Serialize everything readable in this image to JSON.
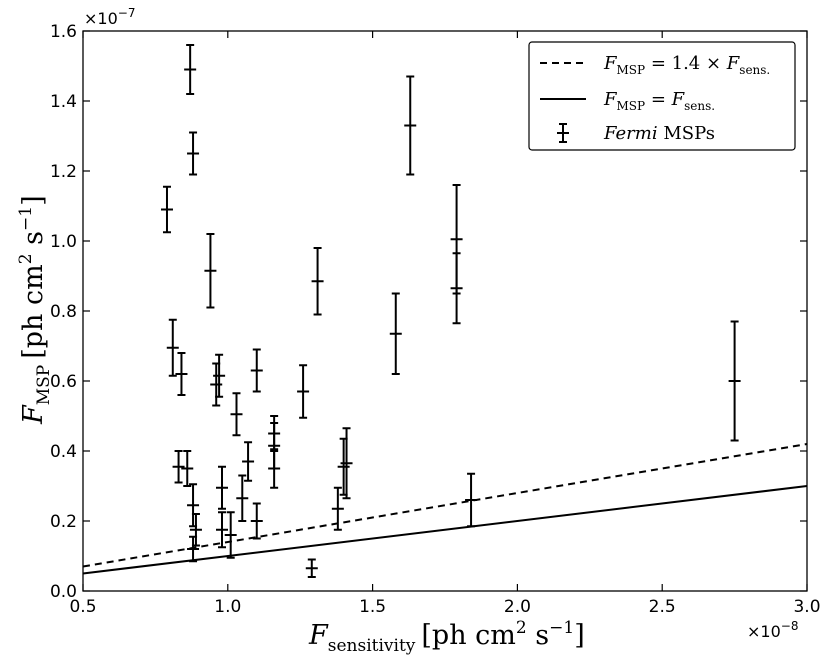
{
  "chart_data": {
    "type": "scatter",
    "xlabel": "F_sensitivity [ph cm^2 s^-1]",
    "xlabel_main": "F",
    "xlabel_sub": "sensitivity",
    "xlabel_unit_pre": "[ph cm",
    "xlabel_unit_sup1": "2",
    "xlabel_unit_mid": " s",
    "xlabel_unit_sup2": "−1",
    "xlabel_unit_post": "]",
    "ylabel": "F_MSP [ph cm^2 s^-1]",
    "ylabel_main": "F",
    "ylabel_sub": "MSP",
    "ylabel_unit_pre": "[ph cm",
    "ylabel_unit_sup1": "2",
    "ylabel_unit_mid": " s",
    "ylabel_unit_sup2": "−1",
    "ylabel_unit_post": "]",
    "x_multiplier": "×10",
    "x_multiplier_exp": "−8",
    "y_multiplier": "×10",
    "y_multiplier_exp": "−7",
    "xlim": [
      0.5,
      3.0
    ],
    "ylim": [
      0.0,
      1.6
    ],
    "xticks": [
      "0.5",
      "1.0",
      "1.5",
      "2.0",
      "2.5",
      "3.0"
    ],
    "yticks": [
      "0.0",
      "0.2",
      "0.4",
      "0.6",
      "0.8",
      "1.0",
      "1.2",
      "1.4",
      "1.6"
    ],
    "grid": false,
    "legend_position": "top-right",
    "legend": [
      {
        "style": "dashed",
        "label_main": "F",
        "label_sub": "MSP",
        "label_mid": " = 1.4 × ",
        "label_main2": "F",
        "label_sub2": "sens."
      },
      {
        "style": "solid",
        "label_main": "F",
        "label_sub": "MSP",
        "label_mid": " = ",
        "label_main2": "F",
        "label_sub2": "sens."
      },
      {
        "style": "errorbar",
        "label_italic": "Fermi",
        "label_rest": " MSPs"
      }
    ],
    "series": [
      {
        "name": "F_MSP = 1.4 × F_sens.",
        "style": "dashed",
        "x": [
          0.5,
          3.0
        ],
        "y": [
          0.07,
          0.42
        ]
      },
      {
        "name": "F_MSP = F_sens.",
        "style": "solid",
        "x": [
          0.5,
          3.0
        ],
        "y": [
          0.05,
          0.3
        ]
      },
      {
        "name": "Fermi MSPs",
        "style": "errorbar",
        "points": [
          {
            "x": 0.79,
            "y": 1.09,
            "err": 0.065
          },
          {
            "x": 0.87,
            "y": 1.49,
            "err": 0.07
          },
          {
            "x": 0.88,
            "y": 1.25,
            "err": 0.06
          },
          {
            "x": 0.94,
            "y": 0.915,
            "err": 0.105
          },
          {
            "x": 0.81,
            "y": 0.695,
            "err": 0.08
          },
          {
            "x": 0.84,
            "y": 0.62,
            "err": 0.06
          },
          {
            "x": 0.96,
            "y": 0.59,
            "err": 0.06
          },
          {
            "x": 0.97,
            "y": 0.615,
            "err": 0.06
          },
          {
            "x": 1.1,
            "y": 0.63,
            "err": 0.06
          },
          {
            "x": 1.03,
            "y": 0.505,
            "err": 0.06
          },
          {
            "x": 1.26,
            "y": 0.57,
            "err": 0.075
          },
          {
            "x": 1.31,
            "y": 0.885,
            "err": 0.095
          },
          {
            "x": 1.63,
            "y": 1.33,
            "err": 0.14
          },
          {
            "x": 1.58,
            "y": 0.735,
            "err": 0.115
          },
          {
            "x": 1.79,
            "y": 1.005,
            "err": 0.155
          },
          {
            "x": 1.79,
            "y": 0.865,
            "err": 0.1
          },
          {
            "x": 2.75,
            "y": 0.6,
            "err": 0.17
          },
          {
            "x": 0.83,
            "y": 0.355,
            "err": 0.045
          },
          {
            "x": 0.86,
            "y": 0.35,
            "err": 0.05
          },
          {
            "x": 0.88,
            "y": 0.245,
            "err": 0.06
          },
          {
            "x": 0.89,
            "y": 0.175,
            "err": 0.045
          },
          {
            "x": 0.88,
            "y": 0.12,
            "err": 0.035
          },
          {
            "x": 0.98,
            "y": 0.295,
            "err": 0.06
          },
          {
            "x": 0.98,
            "y": 0.175,
            "err": 0.05
          },
          {
            "x": 1.01,
            "y": 0.16,
            "err": 0.065
          },
          {
            "x": 1.05,
            "y": 0.265,
            "err": 0.065
          },
          {
            "x": 1.07,
            "y": 0.37,
            "err": 0.055
          },
          {
            "x": 1.1,
            "y": 0.2,
            "err": 0.05
          },
          {
            "x": 1.16,
            "y": 0.45,
            "err": 0.05
          },
          {
            "x": 1.16,
            "y": 0.415,
            "err": 0.065
          },
          {
            "x": 1.16,
            "y": 0.35,
            "err": 0.055
          },
          {
            "x": 1.29,
            "y": 0.065,
            "err": 0.025
          },
          {
            "x": 1.38,
            "y": 0.235,
            "err": 0.06
          },
          {
            "x": 1.4,
            "y": 0.355,
            "err": 0.08
          },
          {
            "x": 1.41,
            "y": 0.365,
            "err": 0.1
          },
          {
            "x": 1.84,
            "y": 0.26,
            "err": 0.075
          }
        ]
      }
    ]
  }
}
